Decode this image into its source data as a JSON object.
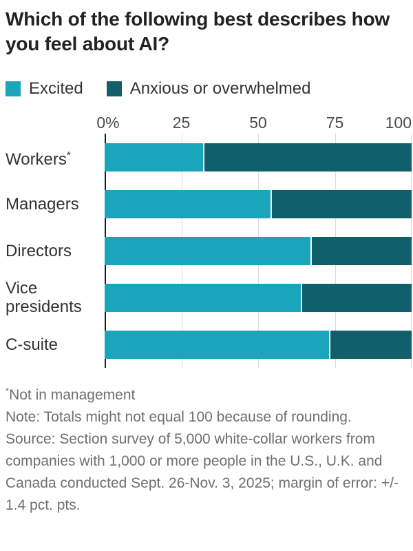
{
  "title": "Which of the following best describes how you feel about AI?",
  "legend": {
    "items": [
      {
        "label": "Excited",
        "color": "#1aa5bc"
      },
      {
        "label": "Anxious or overwhelmed",
        "color": "#105f6a"
      }
    ]
  },
  "chart_data": {
    "type": "bar",
    "orientation": "horizontal",
    "stacked": true,
    "title": "Which of the following best describes how you feel about AI?",
    "categories": [
      "Workers*",
      "Managers",
      "Directors",
      "Vice presidents",
      "C-suite"
    ],
    "series": [
      {
        "name": "Excited",
        "color": "#1aa5bc",
        "values": [
          32,
          54,
          67,
          64,
          73
        ]
      },
      {
        "name": "Anxious or overwhelmed",
        "color": "#105f6a",
        "values": [
          68,
          46,
          33,
          36,
          27
        ]
      }
    ],
    "xlabel": "",
    "ylabel": "",
    "xlim": [
      0,
      100
    ],
    "x_tick_labels": [
      "0%",
      "25",
      "50",
      "75",
      "100"
    ],
    "x_tick_values": [
      0,
      25,
      50,
      75,
      100
    ],
    "grid": true,
    "gridline_values": [
      25,
      50,
      75,
      100
    ],
    "legend_position": "top"
  },
  "footnotes": {
    "asterisk": "*",
    "footnote": "Not in management",
    "note": "Note: Totals might not equal 100 because of rounding.",
    "source": "Source: Section survey of 5,000 white-collar workers from companies with 1,000 or more people in the U.S., U.K. and Canada conducted Sept. 26-Nov. 3, 2025; margin of error: +/- 1.4 pct. pts."
  }
}
